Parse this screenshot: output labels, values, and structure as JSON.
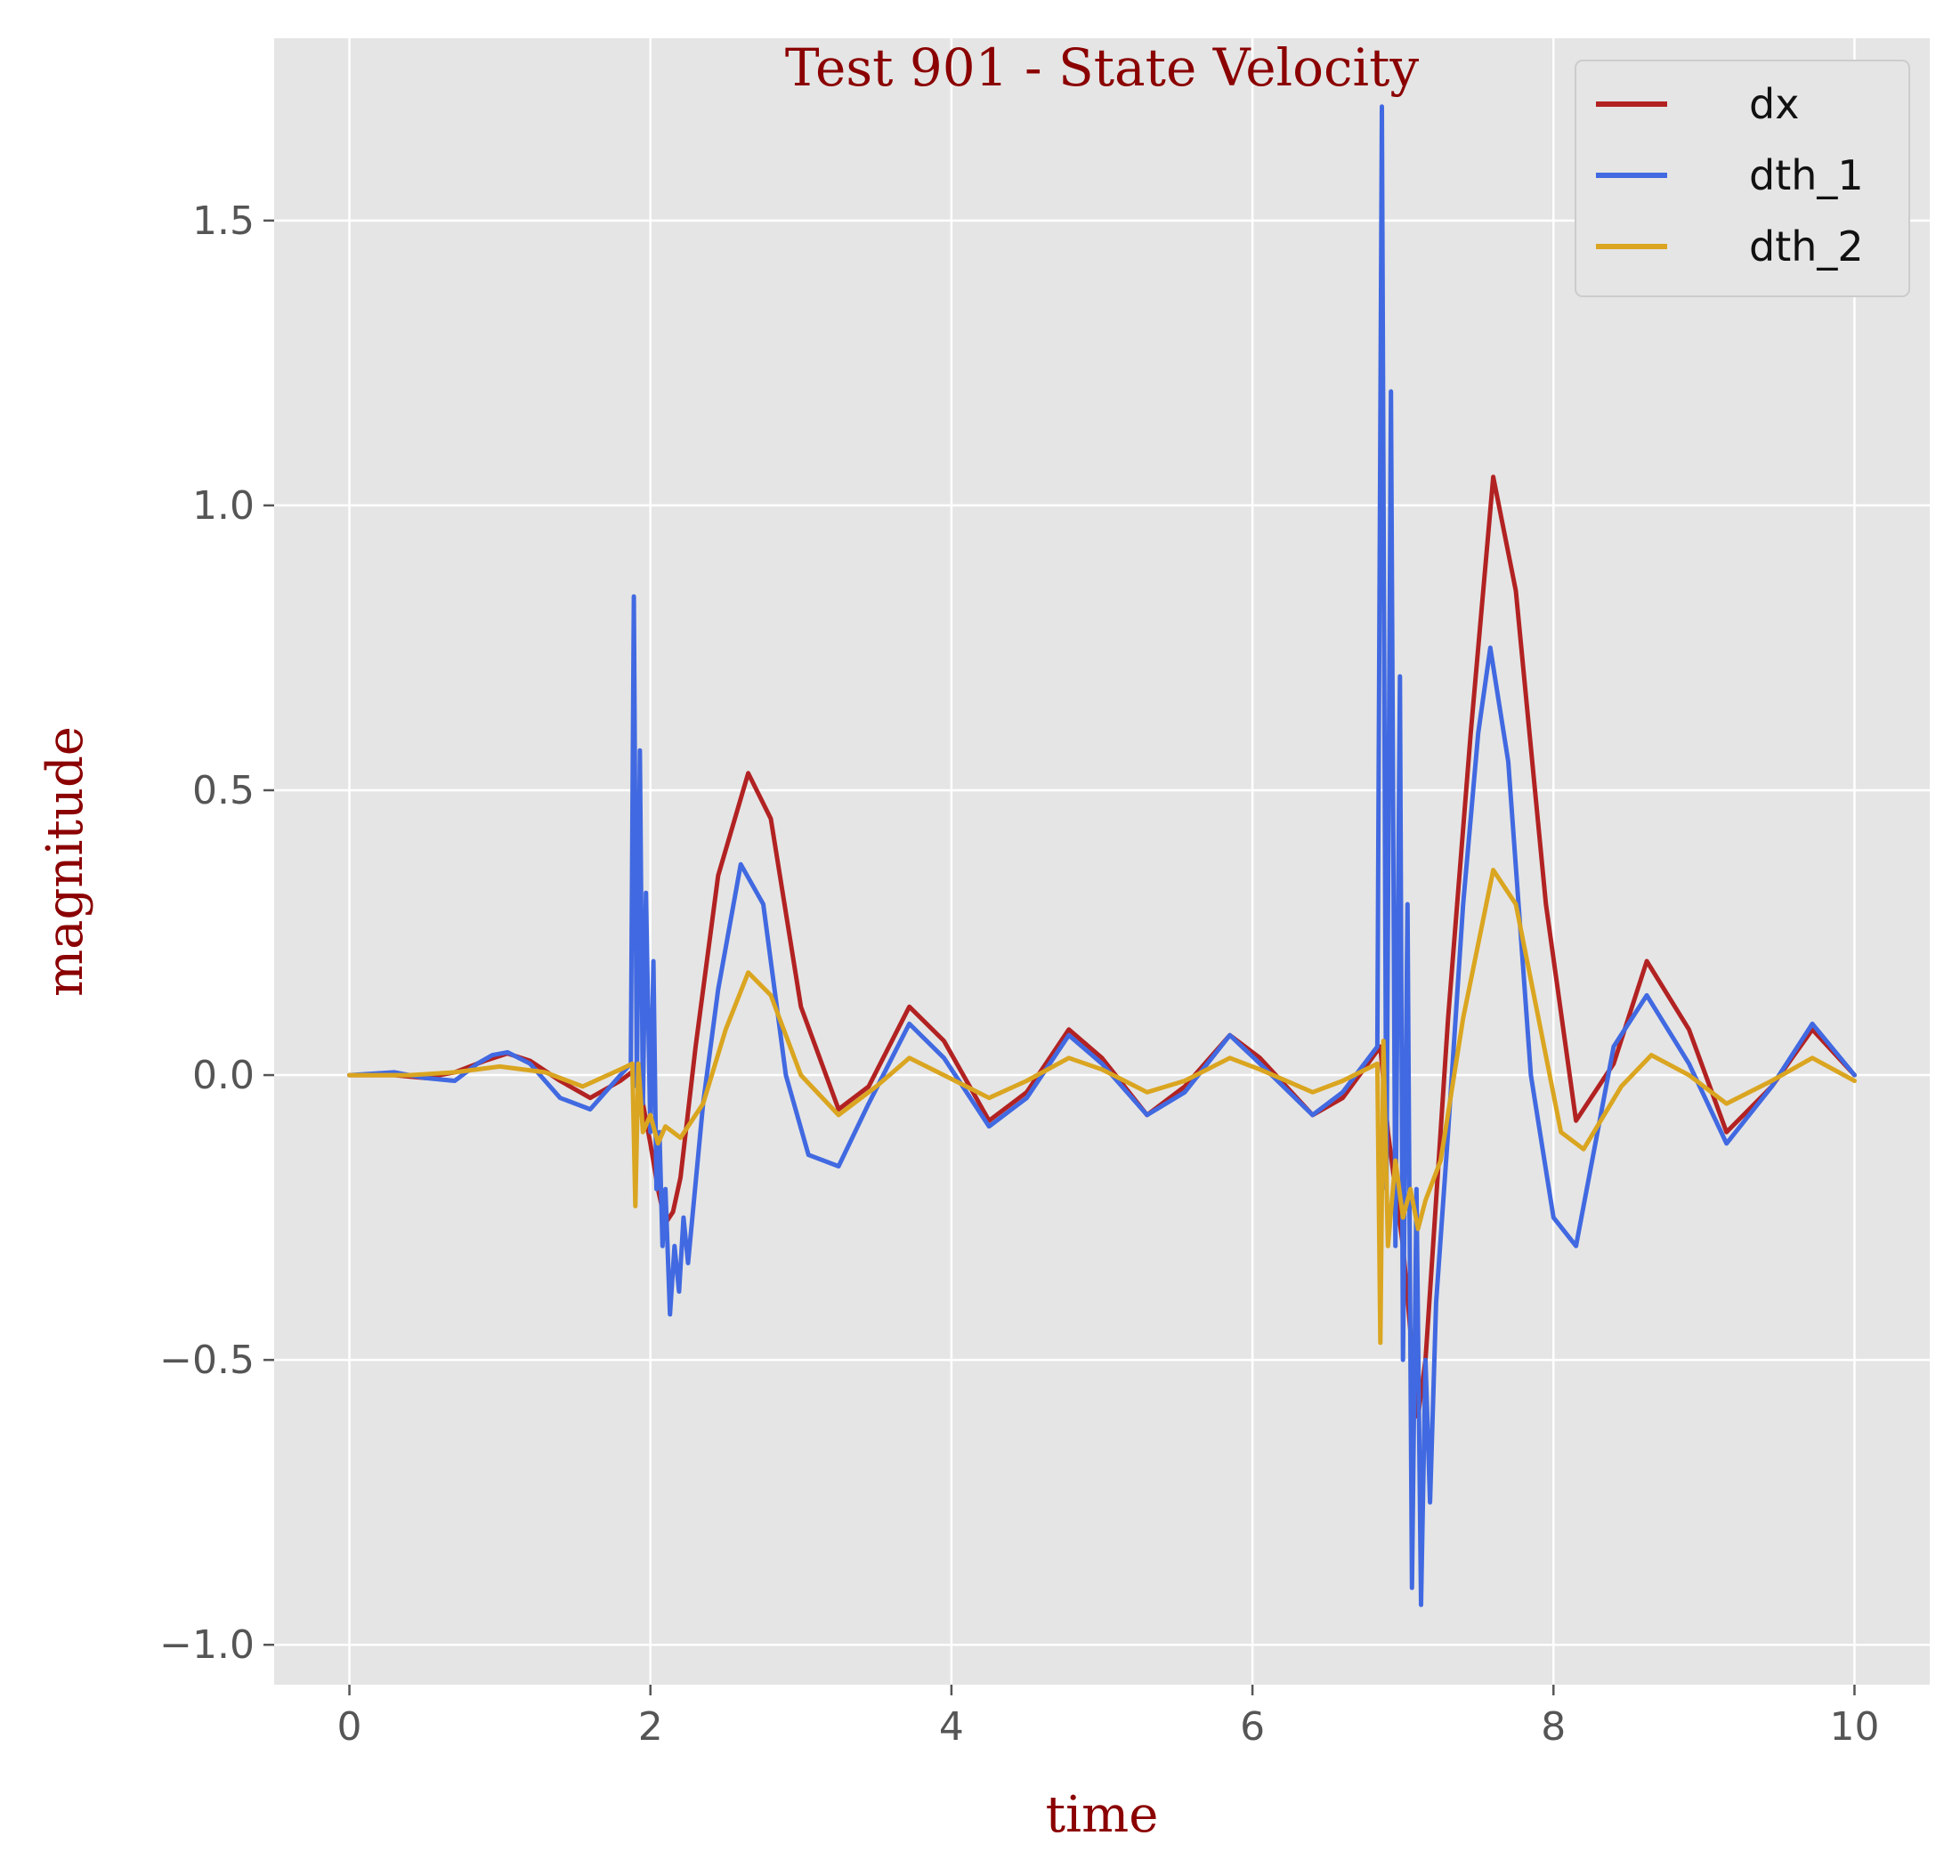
{
  "chart_data": {
    "type": "line",
    "title": "Test 901 - State Velocity",
    "xlabel": "time",
    "ylabel": "magnitude",
    "xlim": [
      -0.5,
      10.5
    ],
    "ylim": [
      -1.07,
      1.82
    ],
    "xticks": [
      0,
      2,
      4,
      6,
      8,
      10
    ],
    "yticks": [
      -1.0,
      -0.5,
      0.0,
      0.5,
      1.0,
      1.5
    ],
    "ytick_labels": [
      "−1.0",
      "−0.5",
      "0.0",
      "0.5",
      "1.0",
      "1.5"
    ],
    "grid": true,
    "legend_position": "top-right",
    "series": [
      {
        "name": "dx",
        "color": "#b22222",
        "x": [
          0,
          0.3,
          0.5,
          0.7,
          0.9,
          1.05,
          1.2,
          1.4,
          1.6,
          1.8,
          1.9,
          1.95,
          2.0,
          2.05,
          2.1,
          2.15,
          2.2,
          2.3,
          2.45,
          2.65,
          2.8,
          3.0,
          3.25,
          3.45,
          3.72,
          3.95,
          4.25,
          4.5,
          4.78,
          5.0,
          5.3,
          5.55,
          5.85,
          6.05,
          6.4,
          6.6,
          6.85,
          6.9,
          6.95,
          7.0,
          7.05,
          7.1,
          7.15,
          7.2,
          7.3,
          7.45,
          7.6,
          7.75,
          7.95,
          8.15,
          8.4,
          8.62,
          8.9,
          9.15,
          9.45,
          9.72,
          10.0
        ],
        "values": [
          0,
          0.0,
          -0.005,
          0.005,
          0.025,
          0.038,
          0.025,
          -0.01,
          -0.04,
          -0.01,
          0.01,
          -0.05,
          -0.12,
          -0.2,
          -0.26,
          -0.24,
          -0.18,
          0.05,
          0.35,
          0.53,
          0.45,
          0.12,
          -0.06,
          -0.02,
          0.12,
          0.06,
          -0.08,
          -0.03,
          0.08,
          0.03,
          -0.07,
          -0.02,
          0.07,
          0.03,
          -0.07,
          -0.04,
          0.05,
          -0.1,
          -0.2,
          -0.3,
          -0.45,
          -0.6,
          -0.5,
          -0.3,
          0.1,
          0.6,
          1.05,
          0.85,
          0.3,
          -0.08,
          0.02,
          0.2,
          0.08,
          -0.1,
          -0.02,
          0.08,
          0.0
        ]
      },
      {
        "name": "dth_1",
        "color": "#4169e1",
        "x": [
          0,
          0.3,
          0.5,
          0.7,
          0.85,
          0.95,
          1.05,
          1.2,
          1.3,
          1.4,
          1.6,
          1.8,
          1.87,
          1.89,
          1.91,
          1.93,
          1.95,
          1.97,
          2.0,
          2.02,
          2.04,
          2.06,
          2.08,
          2.1,
          2.13,
          2.16,
          2.19,
          2.22,
          2.25,
          2.35,
          2.45,
          2.6,
          2.75,
          2.9,
          3.05,
          3.25,
          3.45,
          3.72,
          3.95,
          4.25,
          4.5,
          4.78,
          5.0,
          5.3,
          5.55,
          5.85,
          6.05,
          6.4,
          6.6,
          6.83,
          6.86,
          6.89,
          6.92,
          6.95,
          6.98,
          7.0,
          7.03,
          7.06,
          7.09,
          7.12,
          7.15,
          7.18,
          7.22,
          7.3,
          7.4,
          7.5,
          7.58,
          7.7,
          7.85,
          8.0,
          8.15,
          8.4,
          8.62,
          8.9,
          9.15,
          9.45,
          9.72,
          10.0
        ],
        "values": [
          0,
          0.005,
          -0.005,
          -0.01,
          0.02,
          0.035,
          0.04,
          0.02,
          -0.01,
          -0.04,
          -0.06,
          0.0,
          0.02,
          0.84,
          -0.02,
          0.57,
          -0.05,
          0.32,
          -0.1,
          0.2,
          -0.2,
          -0.1,
          -0.3,
          -0.2,
          -0.42,
          -0.3,
          -0.38,
          -0.25,
          -0.33,
          -0.05,
          0.15,
          0.37,
          0.3,
          0.0,
          -0.14,
          -0.16,
          -0.05,
          0.09,
          0.03,
          -0.09,
          -0.04,
          0.07,
          0.02,
          -0.07,
          -0.03,
          0.07,
          0.02,
          -0.07,
          -0.03,
          0.05,
          1.7,
          -0.2,
          1.2,
          -0.3,
          0.7,
          -0.5,
          0.3,
          -0.9,
          -0.2,
          -0.93,
          -0.5,
          -0.75,
          -0.4,
          -0.1,
          0.3,
          0.6,
          0.75,
          0.55,
          0.0,
          -0.25,
          -0.3,
          0.05,
          0.14,
          0.02,
          -0.12,
          -0.02,
          0.09,
          0.0
        ]
      },
      {
        "name": "dth_2",
        "color": "#daa520",
        "x": [
          0,
          0.4,
          0.7,
          1.0,
          1.3,
          1.55,
          1.8,
          1.88,
          1.9,
          1.92,
          1.95,
          2.0,
          2.05,
          2.1,
          2.2,
          2.35,
          2.5,
          2.65,
          2.8,
          3.0,
          3.25,
          3.5,
          3.72,
          3.95,
          4.25,
          4.5,
          4.78,
          5.0,
          5.3,
          5.55,
          5.85,
          6.05,
          6.4,
          6.6,
          6.83,
          6.85,
          6.87,
          6.9,
          6.95,
          7.0,
          7.05,
          7.1,
          7.15,
          7.25,
          7.4,
          7.6,
          7.75,
          7.9,
          8.05,
          8.2,
          8.45,
          8.65,
          8.9,
          9.15,
          9.45,
          9.72,
          10.0
        ],
        "values": [
          0,
          0.0,
          0.005,
          0.015,
          0.005,
          -0.02,
          0.01,
          0.02,
          -0.23,
          0.02,
          -0.1,
          -0.07,
          -0.12,
          -0.09,
          -0.11,
          -0.05,
          0.08,
          0.18,
          0.14,
          0.0,
          -0.07,
          -0.02,
          0.03,
          0.0,
          -0.04,
          -0.01,
          0.03,
          0.01,
          -0.03,
          -0.01,
          0.03,
          0.01,
          -0.03,
          -0.01,
          0.02,
          -0.47,
          0.06,
          -0.3,
          -0.15,
          -0.25,
          -0.2,
          -0.27,
          -0.22,
          -0.15,
          0.1,
          0.36,
          0.3,
          0.1,
          -0.1,
          -0.13,
          -0.02,
          0.035,
          0.0,
          -0.05,
          -0.01,
          0.03,
          -0.01
        ]
      }
    ]
  }
}
